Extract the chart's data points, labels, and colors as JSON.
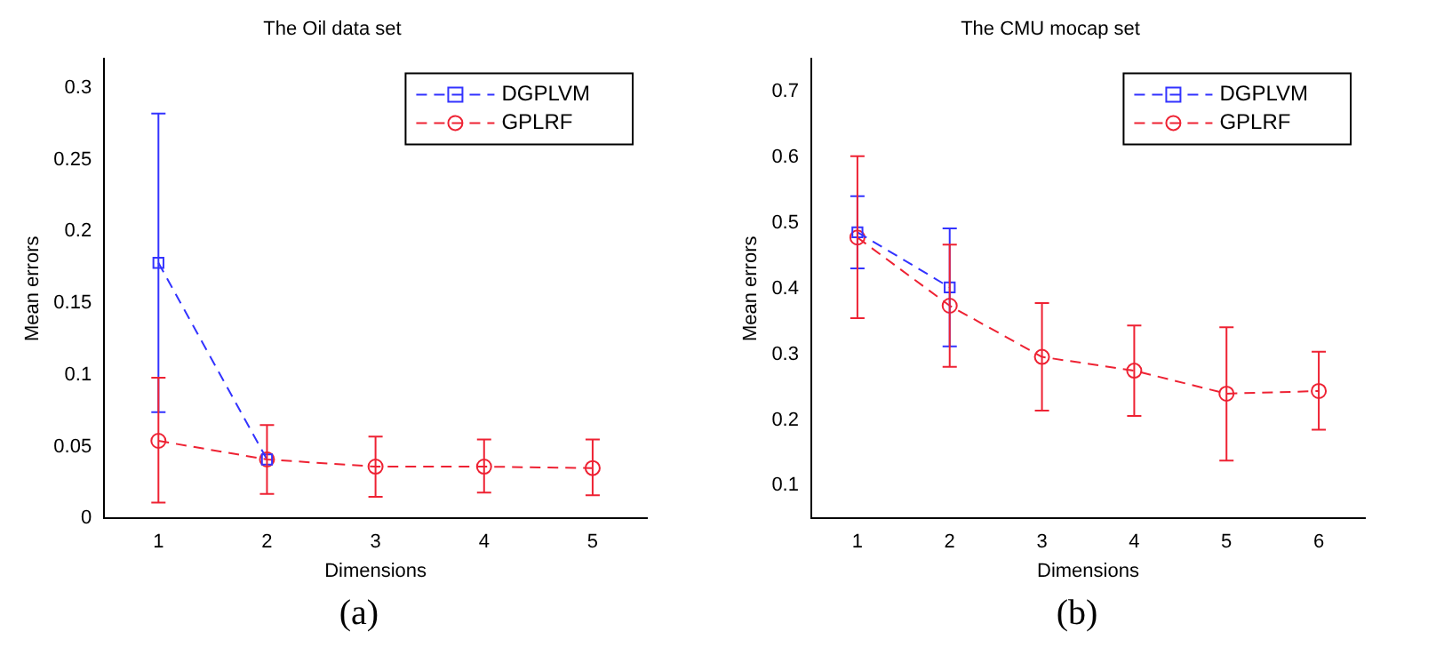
{
  "chart_data": [
    {
      "type": "line",
      "title": "The Oil data set",
      "xlabel": "Dimensions",
      "ylabel": "Mean errors",
      "annotations": [
        "(a)"
      ],
      "x": [
        1,
        2,
        3,
        4,
        5
      ],
      "xlim": [
        0.5,
        5.5
      ],
      "xticks": [
        1,
        2,
        3,
        4,
        5
      ],
      "ylim": [
        0,
        0.32
      ],
      "yticks": [
        0,
        0.05,
        0.1,
        0.15,
        0.2,
        0.25,
        0.3
      ],
      "grid": false,
      "legend": "top right",
      "line_style": "dashed",
      "series": [
        {
          "name": "DGPLVM",
          "color": "#3333ff",
          "marker": "square",
          "values": [
            0.178,
            0.041,
            null,
            null,
            null
          ],
          "errors": [
            0.104,
            null,
            null,
            null,
            null
          ]
        },
        {
          "name": "GPLRF",
          "color": "#ee2233",
          "marker": "circle",
          "values": [
            0.054,
            0.041,
            0.036,
            0.036,
            0.035
          ],
          "errors": [
            [
              0.011,
              0.098
            ],
            [
              0.017,
              0.065
            ],
            [
              0.015,
              0.057
            ],
            [
              0.018,
              0.055
            ],
            [
              0.016,
              0.055
            ]
          ]
        }
      ]
    },
    {
      "type": "line",
      "title": "The CMU mocap set",
      "xlabel": "Dimensions",
      "ylabel": "Mean errors",
      "annotations": [
        "(b)"
      ],
      "x": [
        1,
        2,
        3,
        4,
        5,
        6
      ],
      "xlim": [
        0.5,
        6.5
      ],
      "xticks": [
        1,
        2,
        3,
        4,
        5,
        6
      ],
      "ylim": [
        0.05,
        0.75
      ],
      "yticks": [
        0.1,
        0.2,
        0.3,
        0.4,
        0.5,
        0.6,
        0.7
      ],
      "grid": false,
      "legend": "top right",
      "line_style": "dashed",
      "series": [
        {
          "name": "DGPLVM",
          "color": "#3333ff",
          "marker": "square",
          "values": [
            0.486,
            0.402,
            null,
            null,
            null,
            null
          ],
          "errors": [
            0.055,
            0.09,
            null,
            null,
            null,
            null
          ]
        },
        {
          "name": "GPLRF",
          "color": "#ee2233",
          "marker": "circle",
          "values": [
            0.478,
            0.374,
            0.296,
            0.275,
            0.24,
            0.244
          ],
          "errors": [
            [
              0.355,
              0.602
            ],
            [
              0.281,
              0.467
            ],
            [
              0.214,
              0.378
            ],
            [
              0.206,
              0.344
            ],
            [
              0.138,
              0.341
            ],
            [
              0.185,
              0.304
            ]
          ]
        }
      ]
    }
  ]
}
